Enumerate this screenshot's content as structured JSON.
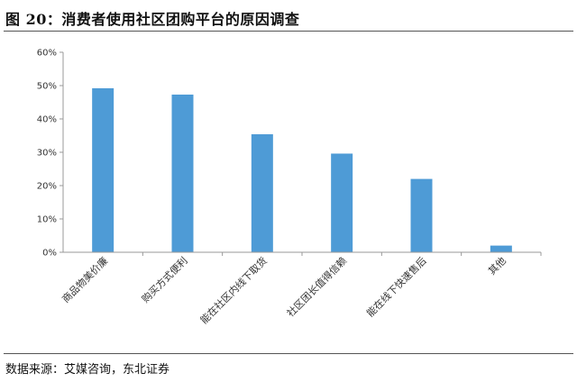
{
  "header": {
    "title": "图 20：消费者使用社区团购平台的原因调查"
  },
  "footer": {
    "source": "数据来源：艾媒咨询，东北证券"
  },
  "chart_data": {
    "type": "bar",
    "title": "",
    "xlabel": "",
    "ylabel": "",
    "categories": [
      "商品物美价廉",
      "购买方式便利",
      "能在社区内线下取货",
      "社区团长值得信赖",
      "能在线下快速售后",
      "其他"
    ],
    "values": [
      49.2,
      47.3,
      35.4,
      29.6,
      22.0,
      2.0
    ],
    "ylim": [
      0,
      60
    ],
    "yticks": [
      "0%",
      "10%",
      "20%",
      "30%",
      "40%",
      "50%",
      "60%"
    ],
    "bar_color": "#4e9bd6",
    "grid": false,
    "legend": "none"
  }
}
